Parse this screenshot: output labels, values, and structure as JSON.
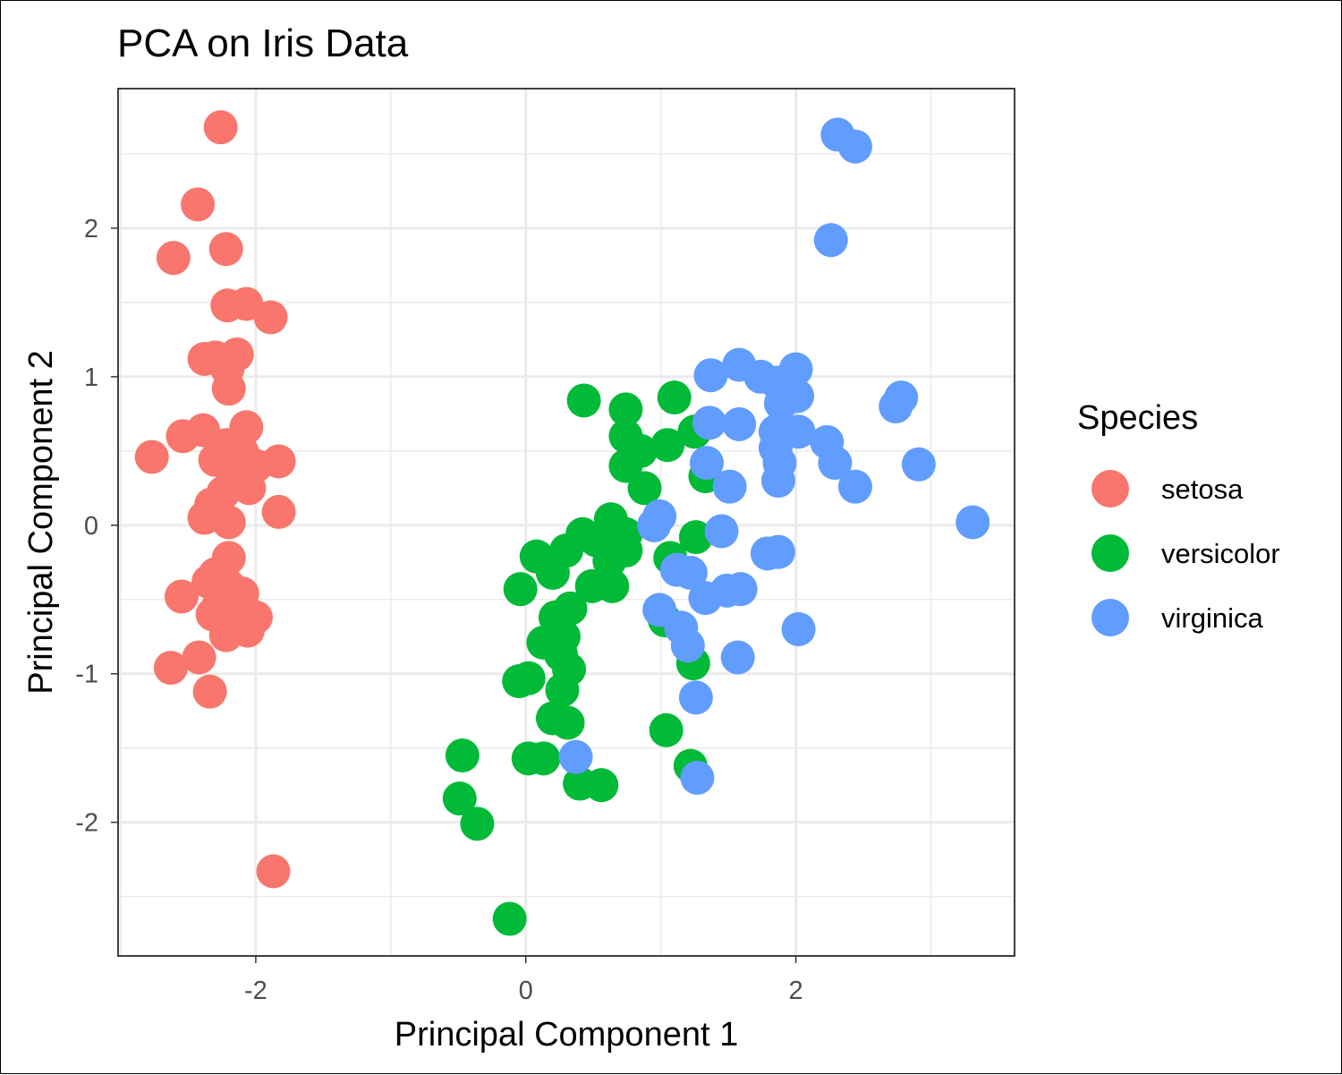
{
  "chart_data": {
    "type": "scatter",
    "title": "PCA on Iris Data",
    "xlabel": "Principal Component 1",
    "ylabel": "Principal Component 2",
    "xlim": [
      -3.02,
      3.62
    ],
    "ylim": [
      -2.9,
      2.94
    ],
    "x_ticks": [
      -2,
      0,
      2
    ],
    "x_tick_labels": [
      "-2",
      "0",
      "2"
    ],
    "y_ticks": [
      -2,
      -1,
      0,
      1,
      2
    ],
    "y_tick_labels": [
      "-2",
      "-1",
      "0",
      "1",
      "2"
    ],
    "grid": true,
    "legend": {
      "title": "Species",
      "position": "right"
    },
    "series": [
      {
        "name": "setosa",
        "color": "#F8766D",
        "points": [
          [
            -2.26,
            2.68
          ],
          [
            -2.43,
            2.16
          ],
          [
            -2.61,
            1.8
          ],
          [
            -2.22,
            1.86
          ],
          [
            -2.21,
            1.48
          ],
          [
            -2.07,
            1.49
          ],
          [
            -1.89,
            1.4
          ],
          [
            -2.38,
            1.12
          ],
          [
            -2.3,
            1.13
          ],
          [
            -2.14,
            1.15
          ],
          [
            -2.21,
            1.05
          ],
          [
            -2.2,
            0.92
          ],
          [
            -2.39,
            0.64
          ],
          [
            -2.54,
            0.6
          ],
          [
            -2.77,
            0.46
          ],
          [
            -2.07,
            0.66
          ],
          [
            -2.22,
            0.54
          ],
          [
            -2.1,
            0.49
          ],
          [
            -1.83,
            0.43
          ],
          [
            -2.3,
            0.44
          ],
          [
            -2.0,
            0.4
          ],
          [
            -2.16,
            0.32
          ],
          [
            -2.24,
            0.22
          ],
          [
            -2.33,
            0.14
          ],
          [
            -2.05,
            0.25
          ],
          [
            -2.38,
            0.05
          ],
          [
            -2.2,
            0.02
          ],
          [
            -1.83,
            0.09
          ],
          [
            -2.2,
            -0.22
          ],
          [
            -2.3,
            -0.33
          ],
          [
            -2.35,
            -0.38
          ],
          [
            -2.55,
            -0.48
          ],
          [
            -2.2,
            -0.41
          ],
          [
            -2.1,
            -0.46
          ],
          [
            -2.28,
            -0.55
          ],
          [
            -2.32,
            -0.6
          ],
          [
            -2.2,
            -0.65
          ],
          [
            -2.0,
            -0.62
          ],
          [
            -2.18,
            -0.69
          ],
          [
            -2.22,
            -0.74
          ],
          [
            -2.06,
            -0.71
          ],
          [
            -2.42,
            -0.89
          ],
          [
            -2.63,
            -0.96
          ],
          [
            -2.34,
            -1.12
          ],
          [
            -1.87,
            -2.33
          ]
        ]
      },
      {
        "name": "versicolor",
        "color": "#00BA38",
        "points": [
          [
            0.43,
            0.84
          ],
          [
            0.74,
            0.78
          ],
          [
            1.1,
            0.86
          ],
          [
            1.25,
            0.63
          ],
          [
            0.74,
            0.6
          ],
          [
            0.85,
            0.5
          ],
          [
            1.05,
            0.54
          ],
          [
            0.74,
            0.4
          ],
          [
            1.33,
            0.33
          ],
          [
            0.88,
            0.25
          ],
          [
            0.63,
            0.04
          ],
          [
            0.74,
            -0.06
          ],
          [
            0.42,
            -0.06
          ],
          [
            0.52,
            -0.1
          ],
          [
            1.26,
            -0.08
          ],
          [
            0.74,
            -0.17
          ],
          [
            0.62,
            -0.24
          ],
          [
            1.07,
            -0.22
          ],
          [
            0.08,
            -0.21
          ],
          [
            0.3,
            -0.17
          ],
          [
            0.2,
            -0.32
          ],
          [
            0.49,
            -0.41
          ],
          [
            0.64,
            -0.41
          ],
          [
            -0.04,
            -0.43
          ],
          [
            0.33,
            -0.56
          ],
          [
            0.22,
            -0.62
          ],
          [
            1.03,
            -0.64
          ],
          [
            0.28,
            -0.75
          ],
          [
            0.13,
            -0.79
          ],
          [
            0.26,
            -0.87
          ],
          [
            1.24,
            -0.93
          ],
          [
            0.32,
            -0.97
          ],
          [
            0.02,
            -1.03
          ],
          [
            -0.05,
            -1.05
          ],
          [
            0.27,
            -1.11
          ],
          [
            0.2,
            -1.3
          ],
          [
            0.31,
            -1.33
          ],
          [
            1.04,
            -1.38
          ],
          [
            0.02,
            -1.57
          ],
          [
            0.13,
            -1.57
          ],
          [
            -0.47,
            -1.55
          ],
          [
            1.22,
            -1.62
          ],
          [
            0.4,
            -1.74
          ],
          [
            0.56,
            -1.75
          ],
          [
            -0.49,
            -1.84
          ],
          [
            -0.36,
            -2.01
          ],
          [
            -0.12,
            -2.65
          ]
        ]
      },
      {
        "name": "virginica",
        "color": "#619CFF",
        "points": [
          [
            2.31,
            2.63
          ],
          [
            2.44,
            2.55
          ],
          [
            2.26,
            1.92
          ],
          [
            1.37,
            1.01
          ],
          [
            1.58,
            1.08
          ],
          [
            1.74,
            1.0
          ],
          [
            2.0,
            1.05
          ],
          [
            1.86,
            0.96
          ],
          [
            2.01,
            0.87
          ],
          [
            1.89,
            0.82
          ],
          [
            2.78,
            0.86
          ],
          [
            2.74,
            0.8
          ],
          [
            1.36,
            0.69
          ],
          [
            1.58,
            0.68
          ],
          [
            1.85,
            0.63
          ],
          [
            2.02,
            0.63
          ],
          [
            2.23,
            0.56
          ],
          [
            1.85,
            0.52
          ],
          [
            1.34,
            0.42
          ],
          [
            2.29,
            0.42
          ],
          [
            2.91,
            0.41
          ],
          [
            1.88,
            0.42
          ],
          [
            1.87,
            0.3
          ],
          [
            1.51,
            0.26
          ],
          [
            2.44,
            0.26
          ],
          [
            0.99,
            0.06
          ],
          [
            0.95,
            0.0
          ],
          [
            3.31,
            0.02
          ],
          [
            1.45,
            -0.04
          ],
          [
            1.79,
            -0.19
          ],
          [
            1.87,
            -0.18
          ],
          [
            1.12,
            -0.3
          ],
          [
            1.22,
            -0.32
          ],
          [
            1.49,
            -0.44
          ],
          [
            1.59,
            -0.43
          ],
          [
            1.33,
            -0.49
          ],
          [
            0.99,
            -0.57
          ],
          [
            1.15,
            -0.69
          ],
          [
            1.2,
            -0.81
          ],
          [
            2.02,
            -0.7
          ],
          [
            1.57,
            -0.89
          ],
          [
            1.26,
            -1.16
          ],
          [
            0.37,
            -1.56
          ],
          [
            1.27,
            -1.7
          ]
        ]
      }
    ]
  }
}
